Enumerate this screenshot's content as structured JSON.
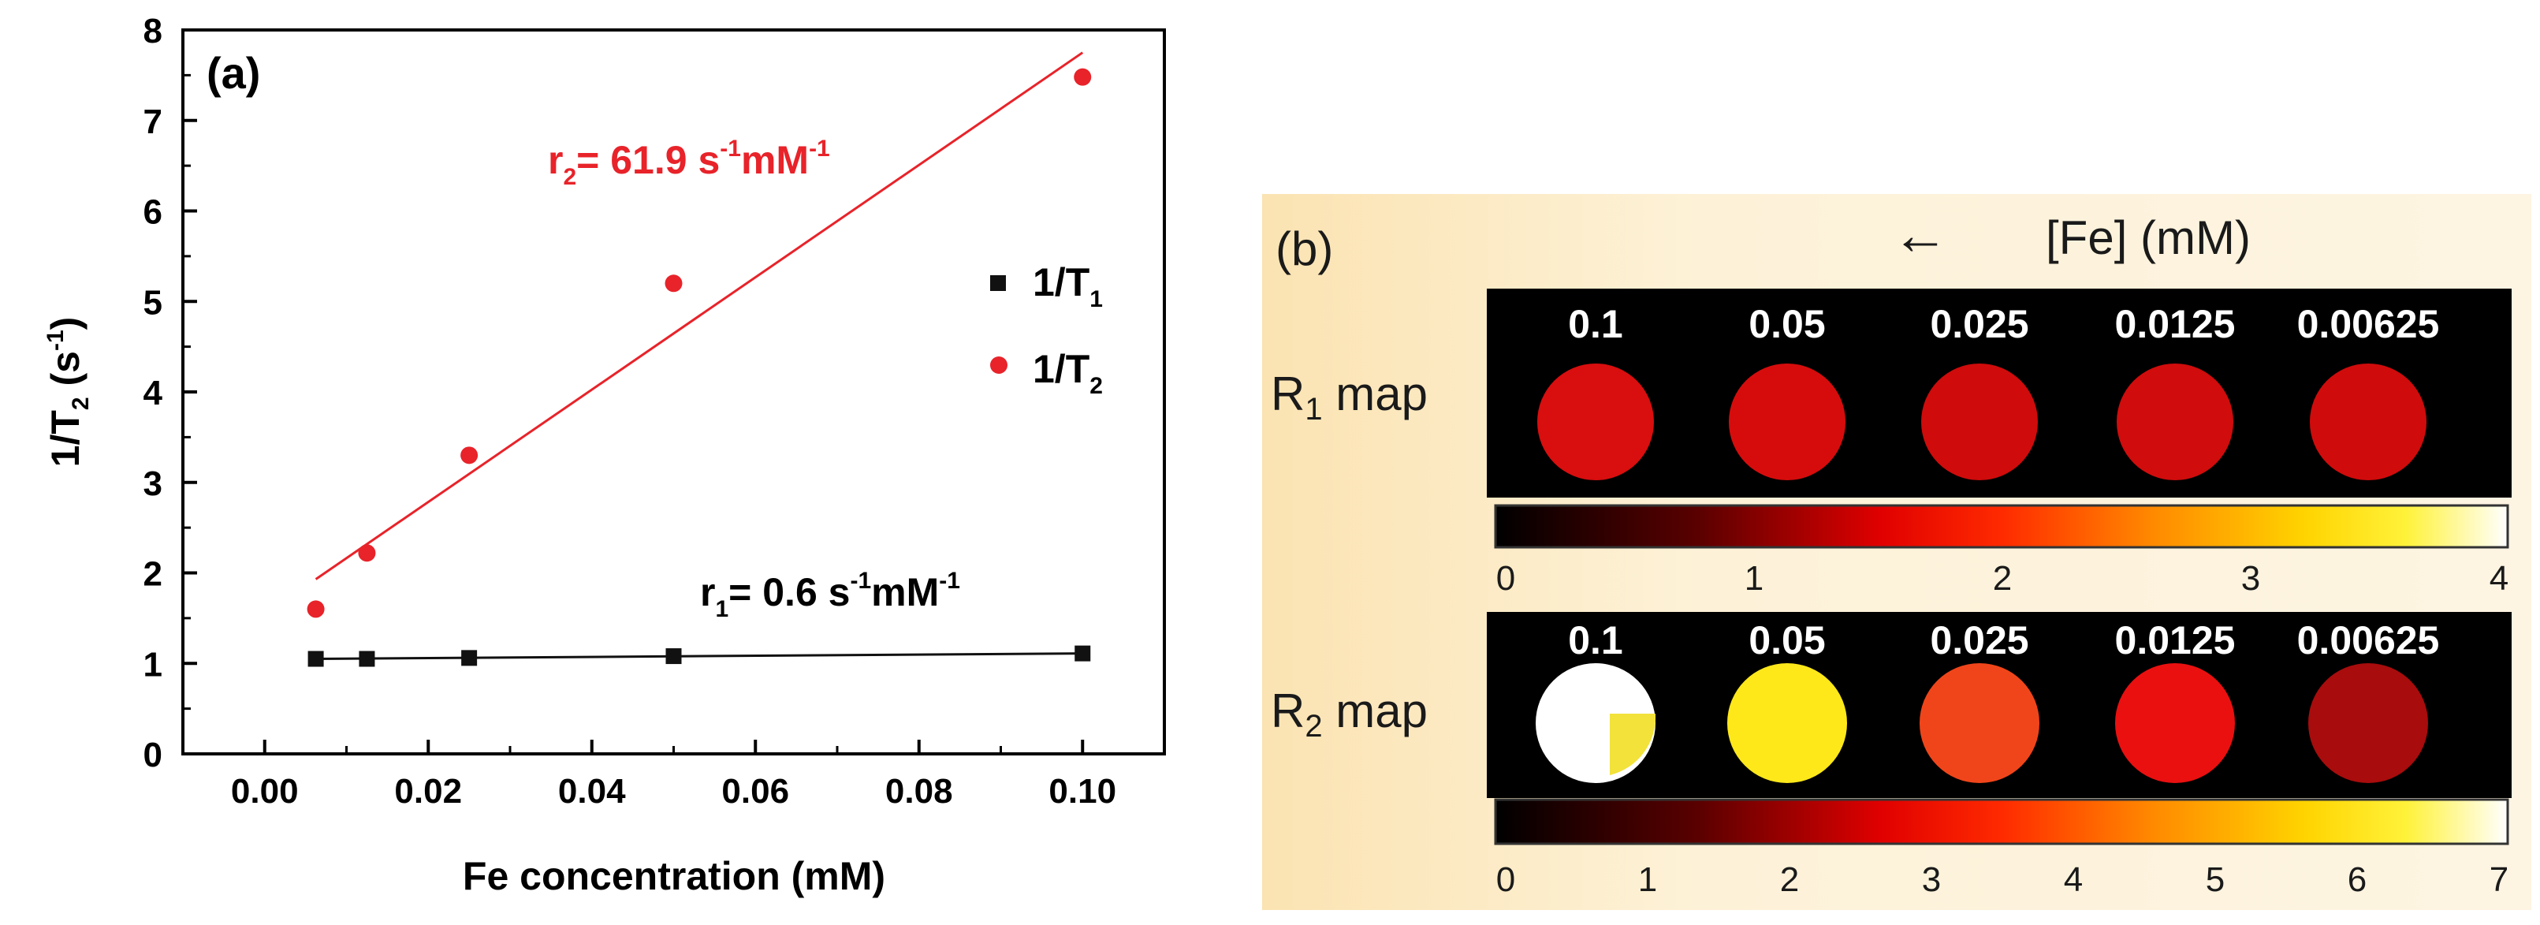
{
  "chart_data": [
    {
      "type": "scatter",
      "panel_label": "(a)",
      "xlabel": "Fe concentration (mM)",
      "ylabel": {
        "main": "1/T",
        "sub": "2",
        "unit_open": " (s",
        "sup": "-1",
        "unit_close": ")"
      },
      "xlim": [
        -0.01,
        0.11
      ],
      "ylim": [
        0,
        8
      ],
      "x_ticks": [
        0.0,
        0.02,
        0.04,
        0.06,
        0.08,
        0.1
      ],
      "x_tick_labels": [
        "0.00",
        "0.02",
        "0.04",
        "0.06",
        "0.08",
        "0.10"
      ],
      "y_ticks": [
        0,
        1,
        2,
        3,
        4,
        5,
        6,
        7,
        8
      ],
      "y_tick_labels": [
        "0",
        "1",
        "2",
        "3",
        "4",
        "5",
        "6",
        "7",
        "8"
      ],
      "series": [
        {
          "name": "1/T1",
          "legend": {
            "main": "1/T",
            "sub": "1"
          },
          "marker": "square",
          "color": "#111111",
          "x": [
            0.00625,
            0.0125,
            0.025,
            0.05,
            0.1
          ],
          "y": [
            1.05,
            1.05,
            1.06,
            1.08,
            1.11
          ],
          "fit": {
            "x": [
              0.00625,
              0.1
            ],
            "y": [
              1.05,
              1.11
            ]
          },
          "annotation": {
            "r": "r",
            "sub": "1",
            "eq": "= 0.6 s",
            "sup1": "-1",
            "mid": "mM",
            "sup2": "-1"
          }
        },
        {
          "name": "1/T2",
          "legend": {
            "main": "1/T",
            "sub": "2"
          },
          "marker": "circle",
          "color": "#e8232a",
          "x": [
            0.00625,
            0.0125,
            0.025,
            0.05,
            0.1
          ],
          "y": [
            1.6,
            2.22,
            3.3,
            5.2,
            7.48
          ],
          "fit": {
            "x": [
              0.00625,
              0.1
            ],
            "y": [
              1.93,
              7.75
            ]
          },
          "annotation": {
            "r": "r",
            "sub": "2",
            "eq": "= 61.9 s",
            "sup1": "-1",
            "mid": "mM",
            "sup2": "-1"
          }
        }
      ]
    },
    {
      "type": "heatmap",
      "panel_label": "(b)",
      "header": {
        "arrow": "←",
        "label": "[Fe] (mM)"
      },
      "concentrations": [
        "0.1",
        "0.05",
        "0.025",
        "0.0125",
        "0.00625"
      ],
      "rows": [
        {
          "label": {
            "main": "R",
            "sub": "1",
            "rest": " map"
          },
          "colorbar_ticks": [
            "0",
            "1",
            "2",
            "3",
            "4"
          ],
          "spot_colors": [
            "#d90e0e",
            "#d60c0c",
            "#cf0b0b",
            "#d00c0c",
            "#d00b0b"
          ]
        },
        {
          "label": {
            "main": "R",
            "sub": "2",
            "rest": " map"
          },
          "colorbar_ticks": [
            "0",
            "1",
            "2",
            "3",
            "4",
            "5",
            "6",
            "7"
          ],
          "spot_colors": [
            "#ffffff",
            "#ffe81a",
            "#f0451a",
            "#ea1010",
            "#a80c0c"
          ]
        }
      ]
    }
  ]
}
